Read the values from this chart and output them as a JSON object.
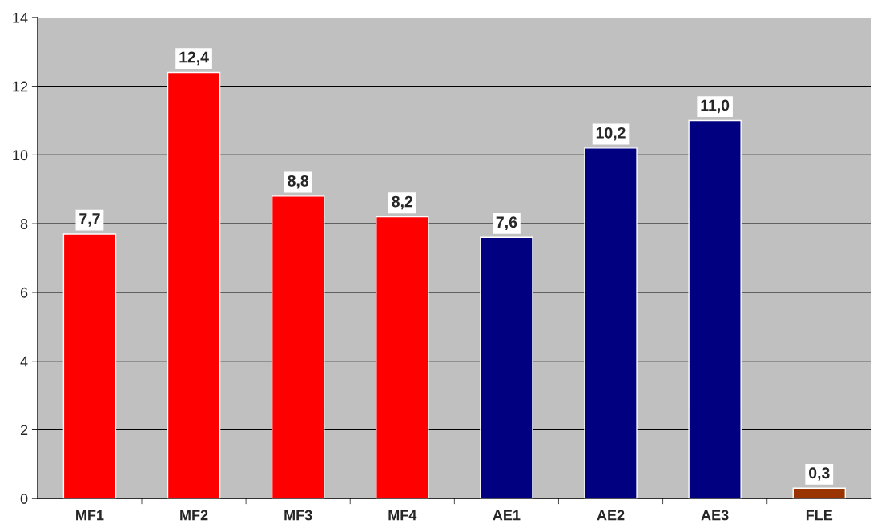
{
  "chart_data": {
    "type": "bar",
    "categories": [
      "MF1",
      "MF2",
      "MF3",
      "MF4",
      "AE1",
      "AE2",
      "AE3",
      "FLE"
    ],
    "values": [
      7.7,
      12.4,
      8.8,
      8.2,
      7.6,
      10.2,
      11.0,
      0.3
    ],
    "value_labels": [
      "7,7",
      "12,4",
      "8,8",
      "8,2",
      "7,6",
      "10,2",
      "11,0",
      "0,3"
    ],
    "colors": [
      "#ff0000",
      "#ff0000",
      "#ff0000",
      "#ff0000",
      "#000080",
      "#000080",
      "#000080",
      "#993300"
    ],
    "ylim": [
      0,
      14
    ],
    "yticks": [
      0,
      2,
      4,
      6,
      8,
      10,
      12,
      14
    ],
    "grid": "y"
  }
}
